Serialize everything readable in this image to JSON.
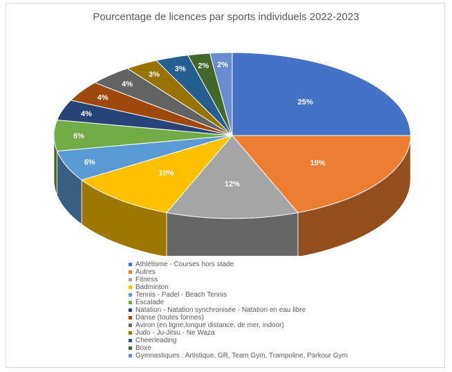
{
  "chart_data": {
    "type": "pie",
    "title": "Pourcentage de licences par sports individuels 2022-2023",
    "slices": [
      {
        "label": "Athlétisme - Courses hors stade",
        "value": 25,
        "data_label": "25%",
        "color": "#4472c4"
      },
      {
        "label": "Autres",
        "value": 19,
        "data_label": "19%",
        "color": "#ed7d31"
      },
      {
        "label": "Fitness",
        "value": 12,
        "data_label": "12%",
        "color": "#a5a5a5"
      },
      {
        "label": "Badminton",
        "value": 10,
        "data_label": "10%",
        "color": "#ffc000"
      },
      {
        "label": "Tennis - Padel - Beach Tennis",
        "value": 6,
        "data_label": "6%",
        "color": "#5b9bd5"
      },
      {
        "label": "Escalade",
        "value": 6,
        "data_label": "6%",
        "color": "#70ad47"
      },
      {
        "label": "Natation - Natation synchronisée - Natation en eau libre",
        "value": 4,
        "data_label": "4%",
        "color": "#264478"
      },
      {
        "label": "Danse (toutes formes)",
        "value": 4,
        "data_label": "4%",
        "color": "#9e480e"
      },
      {
        "label": "Aviron (en ligne,longue distance, de mer, indoor)",
        "value": 4,
        "data_label": "4%",
        "color": "#636363"
      },
      {
        "label": "Judo - Ju-Jitsu - Ne Waza",
        "value": 3,
        "data_label": "3%",
        "color": "#997300"
      },
      {
        "label": "Cheerleading",
        "value": 3,
        "data_label": "3%",
        "color": "#255e91"
      },
      {
        "label": "Boxe",
        "value": 2,
        "data_label": "2%",
        "color": "#43682b"
      },
      {
        "label": "Gymnastiques : Artistique, GR, Team Gym, Trampoline, Parkour Gym",
        "value": 2,
        "data_label": "2%",
        "color": "#698ed0"
      }
    ],
    "legend_position": "bottom",
    "style": "3d"
  }
}
